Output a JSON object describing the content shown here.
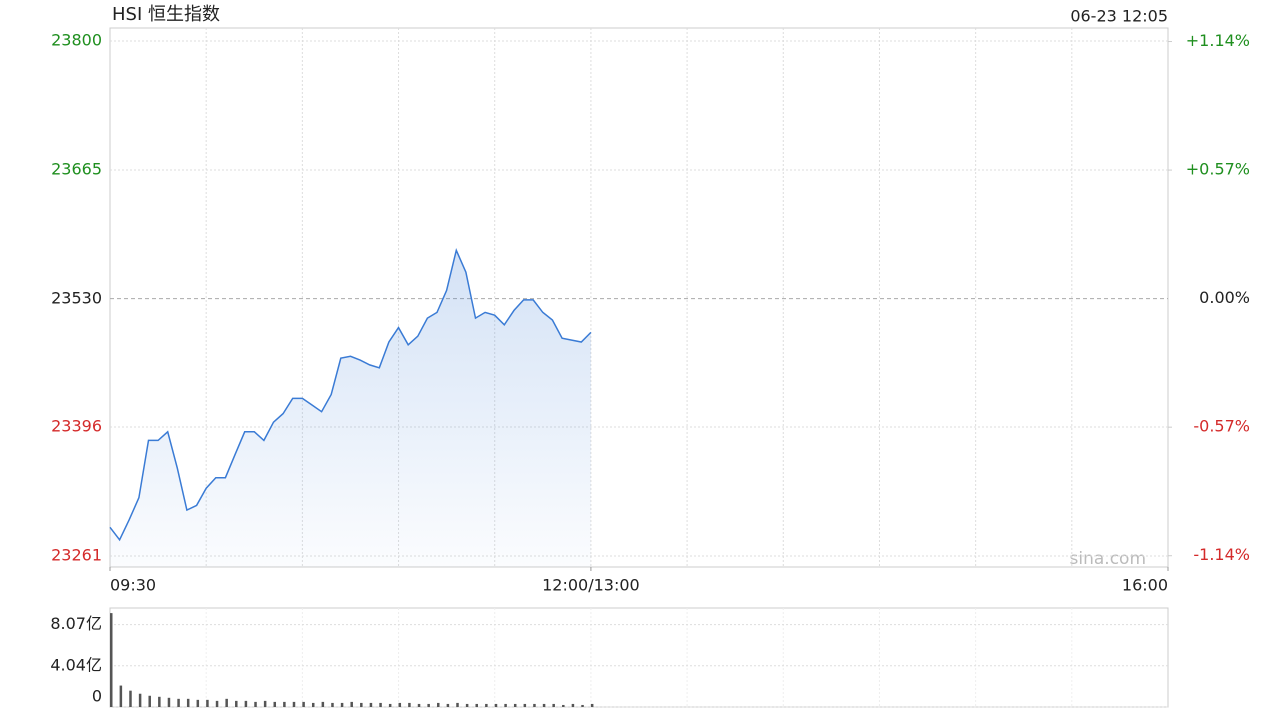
{
  "chart_data": [
    {
      "type": "line",
      "title": "HSI 恒生指数",
      "subtitle": "06-23 12:05",
      "watermark": "sina.com",
      "x": [
        "09:30",
        "09:33",
        "09:36",
        "09:39",
        "09:42",
        "09:45",
        "09:48",
        "09:51",
        "09:54",
        "09:57",
        "10:00",
        "10:03",
        "10:06",
        "10:09",
        "10:12",
        "10:15",
        "10:18",
        "10:21",
        "10:24",
        "10:27",
        "10:30",
        "10:33",
        "10:36",
        "10:39",
        "10:42",
        "10:45",
        "10:48",
        "10:51",
        "10:54",
        "10:57",
        "11:00",
        "11:03",
        "11:06",
        "11:09",
        "11:12",
        "11:15",
        "11:18",
        "11:21",
        "11:24",
        "11:27",
        "11:30",
        "11:33",
        "11:36",
        "11:39",
        "11:42",
        "11:45",
        "11:48",
        "11:51",
        "11:54",
        "11:57",
        "12:00"
      ],
      "values": [
        23291,
        23278,
        23299,
        23322,
        23382,
        23382,
        23391,
        23353,
        23309,
        23314,
        23332,
        23343,
        23343,
        23367,
        23391,
        23391,
        23382,
        23401,
        23410,
        23426,
        23426,
        23419,
        23412,
        23430,
        23468,
        23470,
        23466,
        23461,
        23458,
        23485,
        23500,
        23482,
        23491,
        23510,
        23516,
        23539,
        23581,
        23558,
        23510,
        23516,
        23513,
        23503,
        23518,
        23529,
        23529,
        23516,
        23508,
        23489,
        23487,
        23485,
        23495
      ],
      "color": "#3a7bd5",
      "xlim": [
        "09:30",
        "16:00"
      ],
      "xticks": [
        "09:30",
        {
          "value": "12:00",
          "label": "12:00/13:00"
        },
        "16:00"
      ],
      "ylim": [
        23249.5,
        23813.6
      ],
      "yticks": [
        23800,
        23665,
        23530,
        23396,
        23261
      ],
      "y2lim": [
        -1.19,
        1.2
      ],
      "y2ticks": [
        {
          "value": 1.14,
          "label": "+1.14%"
        },
        {
          "value": 0.57,
          "label": "+0.57%"
        },
        {
          "value": 0,
          "label": "0.00%"
        },
        {
          "value": -0.57,
          "label": "-0.57%"
        },
        {
          "value": -1.14,
          "label": "-1.14%"
        }
      ],
      "up_color": "#1f8f1f",
      "down_color": "#d42a2a",
      "grid": true
    },
    {
      "type": "bar",
      "x": [
        "09:30",
        "09:33",
        "09:36",
        "09:39",
        "09:42",
        "09:45",
        "09:48",
        "09:51",
        "09:54",
        "09:57",
        "10:00",
        "10:03",
        "10:06",
        "10:09",
        "10:12",
        "10:15",
        "10:18",
        "10:21",
        "10:24",
        "10:27",
        "10:30",
        "10:33",
        "10:36",
        "10:39",
        "10:42",
        "10:45",
        "10:48",
        "10:51",
        "10:54",
        "10:57",
        "11:00",
        "11:03",
        "11:06",
        "11:09",
        "11:12",
        "11:15",
        "11:18",
        "11:21",
        "11:24",
        "11:27",
        "11:30",
        "11:33",
        "11:36",
        "11:39",
        "11:42",
        "11:45",
        "11:48",
        "11:51",
        "11:54",
        "11:57",
        "12:00"
      ],
      "values": [
        9.2,
        2.1,
        1.6,
        1.3,
        1.1,
        1.0,
        0.9,
        0.8,
        0.8,
        0.7,
        0.7,
        0.6,
        0.8,
        0.6,
        0.6,
        0.5,
        0.6,
        0.5,
        0.5,
        0.5,
        0.5,
        0.4,
        0.5,
        0.4,
        0.4,
        0.5,
        0.4,
        0.4,
        0.4,
        0.3,
        0.4,
        0.4,
        0.3,
        0.3,
        0.4,
        0.3,
        0.4,
        0.3,
        0.3,
        0.3,
        0.3,
        0.3,
        0.3,
        0.3,
        0.3,
        0.3,
        0.3,
        0.2,
        0.3,
        0.2,
        0.3
      ],
      "color": "#555555",
      "xlim": [
        "09:30",
        "16:00"
      ],
      "ylim": [
        0,
        9.7
      ],
      "yticks": [
        {
          "value": 8.07,
          "label": "8.07亿"
        },
        {
          "value": 4.04,
          "label": "4.04亿"
        },
        0
      ],
      "grid": true
    }
  ]
}
